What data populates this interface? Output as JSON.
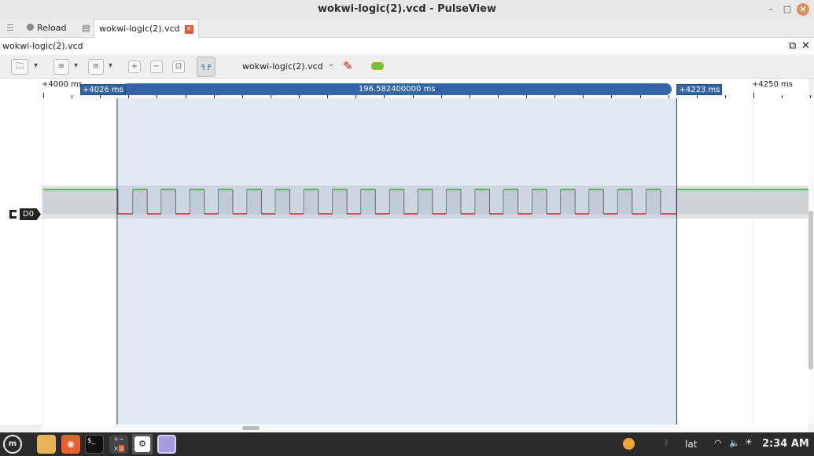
{
  "window": {
    "title": "wokwi-logic(2).vcd - PulseView",
    "minimize": "–",
    "maximize": "□",
    "close": "×"
  },
  "tabs": [
    {
      "label": "Reload",
      "icon": "reload-icon"
    },
    {
      "label": "wokwi-logic(2).vcd",
      "icon": "session-icon",
      "close": "×"
    }
  ],
  "document": {
    "title": "wokwi-logic(2).vcd",
    "float": "⧉",
    "close": "✕"
  },
  "toolbar": {
    "device_select": "wokwi-logic(2).vcd",
    "chevron": "⌄"
  },
  "ruler": {
    "unit": "ms",
    "start": 4000,
    "end": 4270,
    "labels": [
      {
        "t": 4000,
        "text": "+4000 ms"
      },
      {
        "t": 4250,
        "text": "+4250 ms"
      }
    ],
    "minor_step": 10,
    "hidden_labels": [
      4050,
      4100,
      4150,
      4200
    ]
  },
  "cursors": {
    "a": {
      "t": 4026,
      "label": "+4026 ms"
    },
    "b": {
      "t": 4223,
      "label": "+4223 ms"
    },
    "delta": "196.582400000 ms"
  },
  "channel": {
    "name": "D0",
    "high_color": "#2fae2f",
    "low_color": "#c0302a",
    "high_intervals": [
      [
        4000,
        4026.3
      ],
      [
        4031.5,
        4036.6
      ],
      [
        4041.5,
        4046.6
      ],
      [
        4051.6,
        4056.7
      ],
      [
        4061.6,
        4066.7
      ],
      [
        4071.7,
        4076.8
      ],
      [
        4081.7,
        4086.8
      ],
      [
        4091.7,
        4096.8
      ],
      [
        4101.8,
        4106.9
      ],
      [
        4111.8,
        4116.9
      ],
      [
        4121.9,
        4127.0
      ],
      [
        4131.9,
        4137.0
      ],
      [
        4141.9,
        4147.0
      ],
      [
        4152.0,
        4157.1
      ],
      [
        4162.0,
        4167.1
      ],
      [
        4172.1,
        4177.2
      ],
      [
        4182.1,
        4187.2
      ],
      [
        4192.1,
        4197.2
      ],
      [
        4202.2,
        4207.3
      ],
      [
        4212.2,
        4217.3
      ],
      [
        4222.9,
        4270
      ]
    ]
  },
  "taskbar": {
    "keyboard_layout": "lat",
    "clock": "2:34 AM"
  },
  "colors": {
    "cursor_region": "#dce6f2",
    "cursor_flag": "#3465a4",
    "taskbar": "#2b2b2b"
  }
}
